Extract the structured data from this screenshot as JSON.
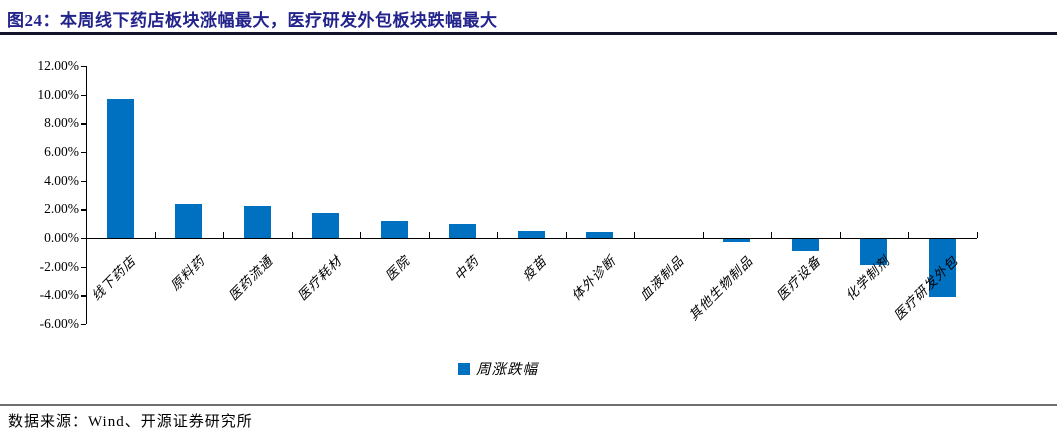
{
  "figure": {
    "title": "图24：本周线下药店板块涨幅最大，医疗研发外包板块跌幅最大",
    "source": "数据来源：Wind、开源证券研究所"
  },
  "colors": {
    "bar": "#0070C0",
    "title_text": "#23238C",
    "axis": "#000000",
    "top_rule": "#13132b",
    "bottom_rule": "#6f6f6f"
  },
  "chart_data": {
    "type": "bar",
    "title": "本周医药各子板块周涨跌幅",
    "categories": [
      "线下药店",
      "原料药",
      "医药流通",
      "医疗耗材",
      "医院",
      "中药",
      "疫苗",
      "体外诊断",
      "血液制品",
      "其他生物制品",
      "医疗设备",
      "化学制剂",
      "医疗研发外包"
    ],
    "values": [
      9.7,
      2.4,
      2.25,
      1.75,
      1.2,
      0.95,
      0.5,
      0.45,
      0.0,
      -0.2,
      -0.8,
      -1.8,
      -4.0
    ],
    "value_unit": "%",
    "ylim": [
      -6,
      12
    ],
    "ytick_step": 2,
    "ytick_labels": [
      "12.00%",
      "10.00%",
      "8.00%",
      "6.00%",
      "4.00%",
      "2.00%",
      "0.00%",
      "-2.00%",
      "-4.00%",
      "-6.00%"
    ],
    "xlabel": "",
    "ylabel": "",
    "grid": false,
    "legend_position": "bottom",
    "legend_entries": [
      "周涨跌幅"
    ]
  }
}
